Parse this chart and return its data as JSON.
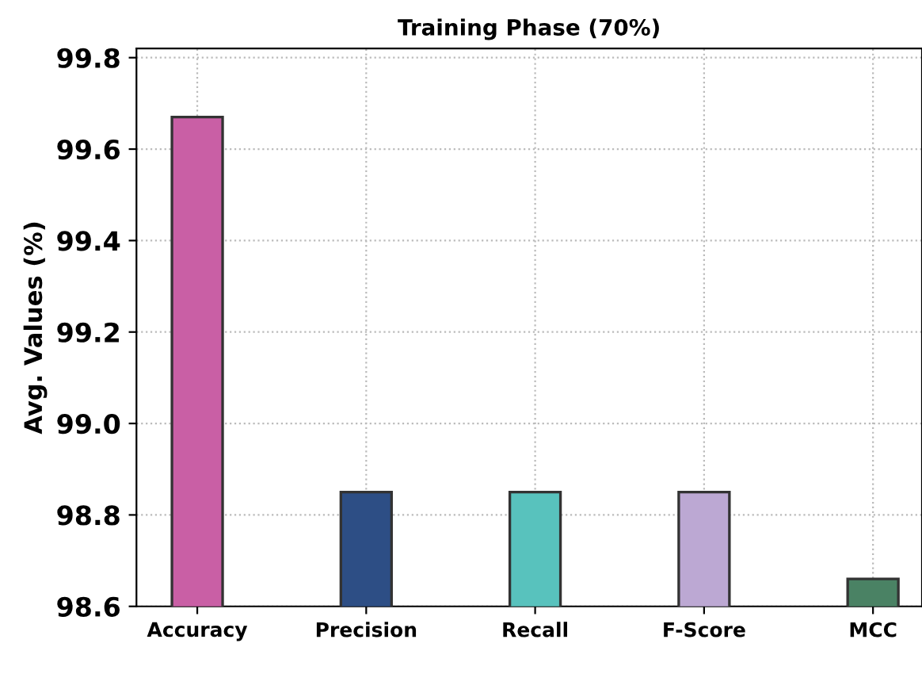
{
  "chart_data": {
    "type": "bar",
    "title": "Training Phase (70%)",
    "ylabel": "Avg. Values (%)",
    "categories": [
      "Accuracy",
      "Precision",
      "Recall",
      "F-Score",
      "MCC"
    ],
    "values": [
      99.67,
      98.85,
      98.85,
      98.85,
      98.66
    ],
    "colors": [
      "#c95fa5",
      "#2d4e85",
      "#58c2bd",
      "#bca8d3",
      "#4a8264"
    ],
    "ylim": [
      98.6,
      99.82
    ],
    "yticks": [
      98.6,
      98.8,
      {
        "value": 99.0,
        "label": "99.0"
      },
      99.2,
      99.4,
      99.6,
      99.8
    ],
    "grid": true
  }
}
